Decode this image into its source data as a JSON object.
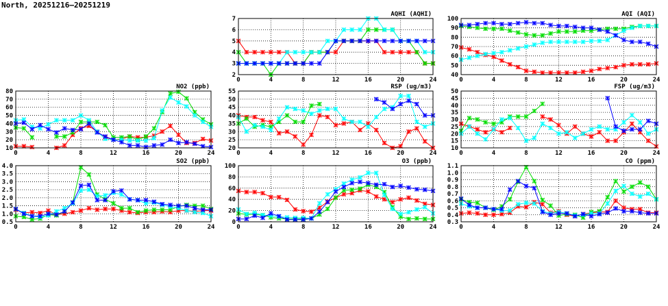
{
  "title": "North, 20251216–20251219",
  "series_colors": [
    "#ff0000",
    "#00dd00",
    "#00ffff",
    "#0000ff"
  ],
  "chart_data": [
    {
      "id": "aqhi",
      "type": "line",
      "title": "AQHI (AQHI)",
      "xlabel": "",
      "ylabel": "",
      "xlim": [
        0,
        24
      ],
      "xticks": [
        0,
        4,
        8,
        12,
        16,
        20,
        24
      ],
      "ylim": [
        2,
        7
      ],
      "yticks": [
        2,
        3,
        4,
        5,
        6,
        7
      ],
      "grid": true,
      "series": [
        {
          "name": "red",
          "values": [
            5,
            4,
            4,
            4,
            4,
            4,
            4,
            3,
            3,
            4,
            4,
            4,
            4,
            5,
            5,
            5,
            5,
            5,
            4,
            4,
            4,
            4,
            4,
            3,
            3
          ]
        },
        {
          "name": "green",
          "values": [
            4,
            3,
            3,
            3,
            2,
            3,
            3,
            3,
            3,
            4,
            4,
            4,
            5,
            5,
            5,
            5,
            6,
            6,
            6,
            6,
            5,
            5,
            4,
            3,
            3
          ]
        },
        {
          "name": "cyan",
          "values": [
            3,
            3,
            3,
            3,
            3,
            3,
            4,
            4,
            4,
            4,
            4,
            5,
            5,
            6,
            6,
            6,
            7,
            7,
            6,
            6,
            5,
            5,
            5,
            4,
            4
          ]
        },
        {
          "name": "blue",
          "values": [
            3,
            3,
            3,
            3,
            3,
            3,
            3,
            3,
            3,
            3,
            3,
            4,
            5,
            5,
            5,
            5,
            5,
            5,
            5,
            5,
            5,
            5,
            5,
            5,
            5
          ]
        }
      ]
    },
    {
      "id": "aqi",
      "type": "line",
      "title": "AQI (AQI)",
      "xlabel": "",
      "ylabel": "",
      "xlim": [
        0,
        24
      ],
      "xticks": [
        0,
        4,
        8,
        12,
        16,
        20,
        24
      ],
      "ylim": [
        40,
        100
      ],
      "yticks": [
        40,
        50,
        60,
        70,
        80,
        90,
        100
      ],
      "grid": true,
      "series": [
        {
          "name": "red",
          "values": [
            69,
            67,
            64,
            61,
            59,
            55,
            51,
            48,
            44,
            43,
            42,
            42,
            42,
            42,
            42,
            43,
            44,
            46,
            47,
            48,
            50,
            51,
            51,
            51,
            52
          ]
        },
        {
          "name": "green",
          "values": [
            92,
            91,
            90,
            89,
            89,
            89,
            87,
            85,
            83,
            82,
            82,
            84,
            86,
            86,
            86,
            87,
            87,
            88,
            89,
            89,
            89,
            91,
            92,
            92,
            92
          ]
        },
        {
          "name": "cyan",
          "values": [
            56,
            58,
            60,
            62,
            63,
            64,
            66,
            68,
            70,
            72,
            74,
            75,
            75,
            75,
            75,
            75,
            76,
            76,
            77,
            82,
            87,
            90,
            92,
            92,
            92
          ]
        },
        {
          "name": "blue",
          "values": [
            93,
            93,
            94,
            95,
            95,
            94,
            94,
            95,
            96,
            95,
            95,
            93,
            92,
            92,
            91,
            90,
            90,
            88,
            86,
            82,
            77,
            75,
            75,
            73,
            70
          ]
        }
      ]
    },
    {
      "id": "no2",
      "type": "line",
      "title": "NO2 (ppb)",
      "xlabel": "",
      "ylabel": "",
      "xlim": [
        0,
        24
      ],
      "xticks": [
        0,
        4,
        8,
        12,
        16,
        20,
        24
      ],
      "ylim": [
        10,
        80
      ],
      "yticks": [
        10,
        20,
        30,
        40,
        50,
        60,
        70,
        80
      ],
      "grid": true,
      "series": [
        {
          "name": "red",
          "values": [
            12,
            12,
            11,
            null,
            null,
            10,
            13,
            26,
            34,
            37,
            30,
            23,
            20,
            21,
            24,
            23,
            23,
            25,
            30,
            37,
            26,
            16,
            16,
            21,
            19
          ]
        },
        {
          "name": "green",
          "values": [
            35,
            34,
            23,
            null,
            null,
            24,
            24,
            29,
            42,
            42,
            42,
            38,
            23,
            23,
            24,
            20,
            24,
            34,
            54,
            77,
            79,
            71,
            54,
            45,
            39
          ]
        },
        {
          "name": "cyan",
          "values": [
            44,
            45,
            36,
            34,
            39,
            44,
            44,
            44,
            50,
            44,
            30,
            21,
            20,
            20,
            19,
            19,
            19,
            22,
            56,
            72,
            66,
            61,
            50,
            42,
            36
          ]
        },
        {
          "name": "blue",
          "values": [
            40,
            41,
            33,
            38,
            33,
            29,
            34,
            32,
            33,
            40,
            29,
            24,
            20,
            17,
            13,
            13,
            11,
            13,
            14,
            20,
            16,
            17,
            15,
            12,
            11
          ]
        }
      ]
    },
    {
      "id": "rsp",
      "type": "line",
      "title": "RSP (ug/m3)",
      "xlabel": "",
      "ylabel": "",
      "xlim": [
        0,
        24
      ],
      "xticks": [
        0,
        4,
        8,
        12,
        16,
        20,
        24
      ],
      "ylim": [
        20,
        55
      ],
      "yticks": [
        20,
        25,
        30,
        35,
        40,
        45,
        50,
        55
      ],
      "grid": true,
      "series": [
        {
          "name": "red",
          "values": [
            40,
            39,
            39,
            37,
            36,
            29,
            30,
            27,
            22,
            28,
            40,
            39,
            34,
            35,
            36,
            31,
            35,
            31,
            23,
            20,
            21,
            30,
            32,
            24,
            20
          ]
        },
        {
          "name": "green",
          "values": [
            35,
            38,
            33,
            34,
            33,
            36,
            40,
            36,
            36,
            46,
            47,
            null,
            null,
            null,
            null,
            null,
            null,
            null,
            null,
            null,
            null,
            null,
            null,
            null,
            null
          ]
        },
        {
          "name": "cyan",
          "values": [
            39,
            30,
            34,
            33,
            31,
            38,
            45,
            44,
            43,
            41,
            43,
            44,
            44,
            38,
            36,
            36,
            33,
            39,
            44,
            45,
            52,
            52,
            36,
            33,
            35
          ]
        },
        {
          "name": "blue",
          "values": [
            null,
            null,
            null,
            null,
            null,
            null,
            null,
            null,
            null,
            null,
            null,
            null,
            null,
            null,
            null,
            null,
            null,
            50,
            48,
            44,
            47,
            49,
            47,
            40,
            40
          ]
        }
      ]
    },
    {
      "id": "fsp",
      "type": "line",
      "title": "FSP (ug/m3)",
      "xlabel": "",
      "ylabel": "",
      "xlim": [
        0,
        24
      ],
      "xticks": [
        0,
        4,
        8,
        12,
        16,
        20,
        24
      ],
      "ylim": [
        10,
        50
      ],
      "yticks": [
        10,
        15,
        20,
        25,
        30,
        35,
        40,
        45,
        50
      ],
      "grid": true,
      "series": [
        {
          "name": "red",
          "values": [
            27,
            25,
            23,
            21,
            23,
            21,
            24,
            null,
            null,
            null,
            32,
            30,
            26,
            20,
            25,
            20,
            18,
            21,
            15,
            15,
            21,
            27,
            21,
            15,
            11
          ]
        },
        {
          "name": "green",
          "values": [
            22,
            31,
            30,
            28,
            27,
            28,
            32,
            32,
            32,
            36,
            41,
            null,
            null,
            null,
            null,
            null,
            null,
            null,
            null,
            null,
            null,
            null,
            null,
            null,
            null
          ]
        },
        {
          "name": "cyan",
          "values": [
            20,
            25,
            20,
            16,
            23,
            30,
            31,
            24,
            15,
            17,
            27,
            24,
            20,
            21,
            17,
            20,
            23,
            25,
            23,
            23,
            28,
            33,
            28,
            20,
            23
          ]
        },
        {
          "name": "blue",
          "values": [
            null,
            null,
            null,
            null,
            null,
            null,
            null,
            null,
            null,
            null,
            null,
            null,
            null,
            null,
            null,
            null,
            null,
            null,
            45,
            25,
            22,
            23,
            23,
            29,
            27
          ]
        }
      ]
    },
    {
      "id": "so2",
      "type": "line",
      "title": "SO2 (ppb)",
      "xlabel": "",
      "ylabel": "",
      "xlim": [
        0,
        24
      ],
      "xticks": [
        0,
        4,
        8,
        12,
        16,
        20,
        24
      ],
      "ylim": [
        0.5,
        4.0
      ],
      "yticks": [
        "0.5",
        "1.0",
        "1.5",
        "2.0",
        "2.5",
        "3.0",
        "3.5",
        "4.0"
      ],
      "grid": true,
      "series": [
        {
          "name": "red",
          "values": [
            1.25,
            1.05,
            1.1,
            1.05,
            1.2,
            0.95,
            1.0,
            1.1,
            1.2,
            1.35,
            1.25,
            1.3,
            1.3,
            1.2,
            1.1,
            1.05,
            1.1,
            1.1,
            1.15,
            1.1,
            1.2,
            1.2,
            1.15,
            1.2,
            1.2
          ]
        },
        {
          "name": "green",
          "values": [
            0.85,
            0.8,
            0.65,
            0.7,
            0.95,
            0.9,
            1.15,
            1.7,
            3.9,
            3.45,
            2.2,
            1.9,
            1.65,
            1.35,
            1.35,
            1.1,
            1.2,
            1.25,
            1.25,
            1.25,
            1.45,
            1.55,
            1.5,
            1.5,
            1.3
          ]
        },
        {
          "name": "cyan",
          "values": [
            1.3,
            1.05,
            0.85,
            0.8,
            0.9,
            1.15,
            1.35,
            1.65,
            2.45,
            2.5,
            2.1,
            2.15,
            2.3,
            2.2,
            1.9,
            1.85,
            1.65,
            1.7,
            1.55,
            1.45,
            1.35,
            1.2,
            1.1,
            1.05,
            0.85
          ]
        },
        {
          "name": "blue",
          "values": [
            1.3,
            1.0,
            0.85,
            0.85,
            1.0,
            0.95,
            1.15,
            1.7,
            2.75,
            2.8,
            1.85,
            1.85,
            2.4,
            2.45,
            1.9,
            1.85,
            1.85,
            1.75,
            1.6,
            1.55,
            1.5,
            1.5,
            1.35,
            1.25,
            1.25
          ]
        }
      ]
    },
    {
      "id": "o3",
      "type": "line",
      "title": "O3 (ppb)",
      "xlabel": "",
      "ylabel": "",
      "xlim": [
        0,
        24
      ],
      "xticks": [
        0,
        4,
        8,
        12,
        16,
        20,
        24
      ],
      "ylim": [
        0,
        100
      ],
      "yticks": [
        0,
        20,
        40,
        60,
        80,
        100
      ],
      "grid": true,
      "series": [
        {
          "name": "red",
          "values": [
            55,
            53,
            53,
            51,
            44,
            44,
            39,
            22,
            19,
            18,
            25,
            36,
            43,
            49,
            51,
            56,
            54,
            45,
            40,
            35,
            40,
            43,
            38,
            32,
            30
          ]
        },
        {
          "name": "green",
          "values": [
            15,
            13,
            13,
            12,
            8,
            6,
            5,
            5,
            5,
            6,
            13,
            23,
            43,
            56,
            57,
            59,
            66,
            62,
            53,
            26,
            9,
            5,
            6,
            5,
            5
          ]
        },
        {
          "name": "cyan",
          "values": [
            22,
            14,
            16,
            12,
            11,
            9,
            8,
            7,
            7,
            6,
            33,
            49,
            58,
            68,
            75,
            79,
            87,
            87,
            48,
            23,
            14,
            17,
            22,
            26,
            15
          ]
        },
        {
          "name": "blue",
          "values": [
            5,
            5,
            11,
            7,
            15,
            10,
            4,
            4,
            4,
            6,
            18,
            35,
            54,
            62,
            69,
            71,
            69,
            66,
            67,
            62,
            64,
            61,
            58,
            57,
            55
          ]
        }
      ]
    },
    {
      "id": "co",
      "type": "line",
      "title": "CO (ppm)",
      "xlabel": "",
      "ylabel": "",
      "xlim": [
        0,
        24
      ],
      "xticks": [
        0,
        4,
        8,
        12,
        16,
        20,
        24
      ],
      "ylim": [
        0.3,
        1.1
      ],
      "yticks": [
        "0.3",
        "0.4",
        "0.5",
        "0.6",
        "0.7",
        "0.8",
        "0.9",
        "1.0",
        "1.1"
      ],
      "grid": true,
      "series": [
        {
          "name": "red",
          "values": [
            0.42,
            0.43,
            0.42,
            0.4,
            0.4,
            0.41,
            0.43,
            0.52,
            0.51,
            0.58,
            0.55,
            0.43,
            0.45,
            0.4,
            0.38,
            0.41,
            0.43,
            0.44,
            0.44,
            0.6,
            0.5,
            0.48,
            0.48,
            0.43,
            0.43
          ]
        },
        {
          "name": "green",
          "values": [
            0.62,
            0.58,
            0.57,
            0.5,
            0.47,
            0.52,
            0.62,
            0.87,
            1.08,
            0.88,
            0.61,
            0.53,
            0.39,
            0.41,
            0.4,
            0.36,
            0.44,
            0.45,
            0.65,
            0.88,
            0.73,
            0.8,
            0.86,
            0.8,
            0.62
          ]
        },
        {
          "name": "cyan",
          "values": [
            0.56,
            0.52,
            0.5,
            0.5,
            0.48,
            0.46,
            0.46,
            0.55,
            0.57,
            0.56,
            0.45,
            0.42,
            0.44,
            0.42,
            0.39,
            0.4,
            0.42,
            0.42,
            0.56,
            0.74,
            0.81,
            0.7,
            0.66,
            0.7,
            0.62
          ]
        },
        {
          "name": "blue",
          "values": [
            0.63,
            0.54,
            0.5,
            0.5,
            0.48,
            0.48,
            0.76,
            0.88,
            0.81,
            0.78,
            0.44,
            0.4,
            0.42,
            0.42,
            0.38,
            0.41,
            0.38,
            0.41,
            0.43,
            0.49,
            0.45,
            0.45,
            0.43,
            0.42,
            0.42
          ]
        }
      ]
    }
  ]
}
